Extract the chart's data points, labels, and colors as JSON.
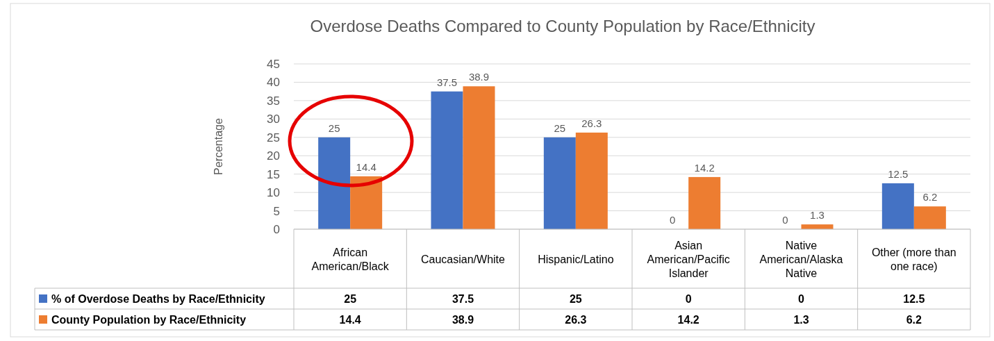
{
  "chart_data": {
    "type": "bar",
    "title": "Overdose Deaths Compared to County Population by Race/Ethnicity",
    "ylabel": "Percentage",
    "categories": [
      "African American/Black",
      "Caucasian/White",
      "Hispanic/Latino",
      "Asian American/Pacific Islander",
      "Native American/Alaska Native",
      "Other (more than one race)"
    ],
    "series": [
      {
        "name": "% of Overdose Deaths by Race/Ethnicity",
        "color": "#4472c4",
        "values": [
          25,
          37.5,
          25,
          0,
          0,
          12.5
        ]
      },
      {
        "name": "County Population by Race/Ethnicity",
        "color": "#ed7d31",
        "values": [
          14.4,
          38.9,
          26.3,
          14.2,
          1.3,
          6.2
        ]
      }
    ],
    "annotations": [
      {
        "text": "25",
        "x": "African American/Black",
        "y": 25
      },
      {
        "text": "14.4",
        "x": "African American/Black",
        "y": 14.4
      },
      {
        "text": "37.5",
        "x": "Caucasian/White",
        "y": 37.5
      },
      {
        "text": "38.9",
        "x": "Caucasian/White",
        "y": 38.9
      },
      {
        "text": "25",
        "x": "Hispanic/Latino",
        "y": 25
      },
      {
        "text": "26.3",
        "x": "Hispanic/Latino",
        "y": 26.3
      },
      {
        "text": "0",
        "x": "Asian American/Pacific Islander",
        "y": 0
      },
      {
        "text": "14.2",
        "x": "Asian American/Pacific Islander",
        "y": 14.2
      },
      {
        "text": "0",
        "x": "Native American/Alaska Native",
        "y": 0
      },
      {
        "text": "1.3",
        "x": "Native American/Alaska Native",
        "y": 1.3
      },
      {
        "text": "12.5",
        "x": "Other (more than one race)",
        "y": 12.5
      },
      {
        "text": "6.2",
        "x": "Other (more than one race)",
        "y": 6.2
      }
    ],
    "ylim": [
      0,
      45
    ],
    "yticks": [
      0,
      5,
      10,
      15,
      20,
      25,
      30,
      35,
      40,
      45
    ],
    "grid": "y",
    "data_labels": true,
    "legend": "bottom"
  }
}
